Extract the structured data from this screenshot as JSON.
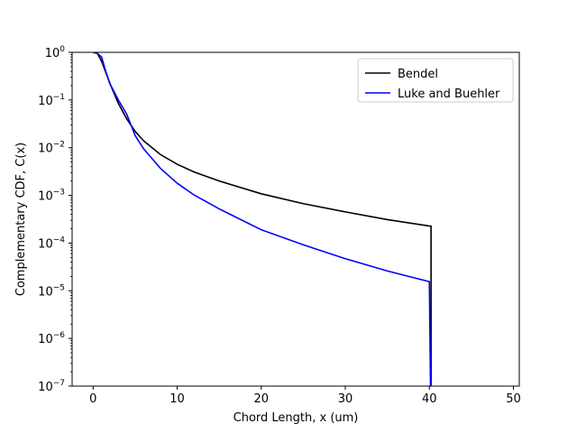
{
  "chart_data": {
    "type": "line",
    "xlabel": "Chord Length, x (um)",
    "ylabel": "Complementary CDF, C(x)",
    "xlim": [
      -2.5,
      50.7
    ],
    "ylim": [
      1e-07,
      1
    ],
    "yscale": "log",
    "grid": false,
    "legend_position": "top-right",
    "x_ticks": [
      0,
      10,
      20,
      30,
      40,
      50
    ],
    "x_tick_labels": [
      "0",
      "10",
      "20",
      "30",
      "40",
      "50"
    ],
    "y_ticks": [
      1e-07,
      1e-06,
      1e-05,
      0.0001,
      0.001,
      0.01,
      0.1,
      1
    ],
    "y_tick_base": [
      "10",
      "10",
      "10",
      "10",
      "10",
      "10",
      "10",
      "10"
    ],
    "y_tick_exp": [
      "−7",
      "−6",
      "−5",
      "−4",
      "−3",
      "−2",
      "−1",
      "0"
    ],
    "series": [
      {
        "name": "Bendel",
        "color": "#000000",
        "points": [
          [
            0,
            1.0
          ],
          [
            0.5,
            0.95
          ],
          [
            1.0,
            0.65
          ],
          [
            1.5,
            0.38
          ],
          [
            2.0,
            0.22
          ],
          [
            3.0,
            0.085
          ],
          [
            4.0,
            0.04
          ],
          [
            5.0,
            0.022
          ],
          [
            6.0,
            0.014
          ],
          [
            8.0,
            0.0072
          ],
          [
            10.0,
            0.0045
          ],
          [
            12.0,
            0.0031
          ],
          [
            15.0,
            0.002
          ],
          [
            20.0,
            0.00108
          ],
          [
            25.0,
            0.00067
          ],
          [
            30.0,
            0.00045
          ],
          [
            35.0,
            0.00031
          ],
          [
            40.2,
            0.000225
          ],
          [
            40.2,
            1e-08
          ]
        ]
      },
      {
        "name": "Luke and Buehler",
        "color": "#0000ff",
        "points": [
          [
            0,
            1.0
          ],
          [
            0.5,
            0.95
          ],
          [
            1.0,
            0.8
          ],
          [
            1.5,
            0.4
          ],
          [
            2.0,
            0.22
          ],
          [
            3.0,
            0.1
          ],
          [
            4.0,
            0.05
          ],
          [
            5.0,
            0.018
          ],
          [
            6.0,
            0.0095
          ],
          [
            8.0,
            0.0037
          ],
          [
            10.0,
            0.0018
          ],
          [
            12.0,
            0.00102
          ],
          [
            15.0,
            0.00052
          ],
          [
            20.0,
            0.00019
          ],
          [
            25.0,
            9.2e-05
          ],
          [
            30.0,
            4.7e-05
          ],
          [
            35.0,
            2.6e-05
          ],
          [
            40.0,
            1.55e-05
          ],
          [
            40.2,
            1e-08
          ]
        ]
      }
    ]
  }
}
